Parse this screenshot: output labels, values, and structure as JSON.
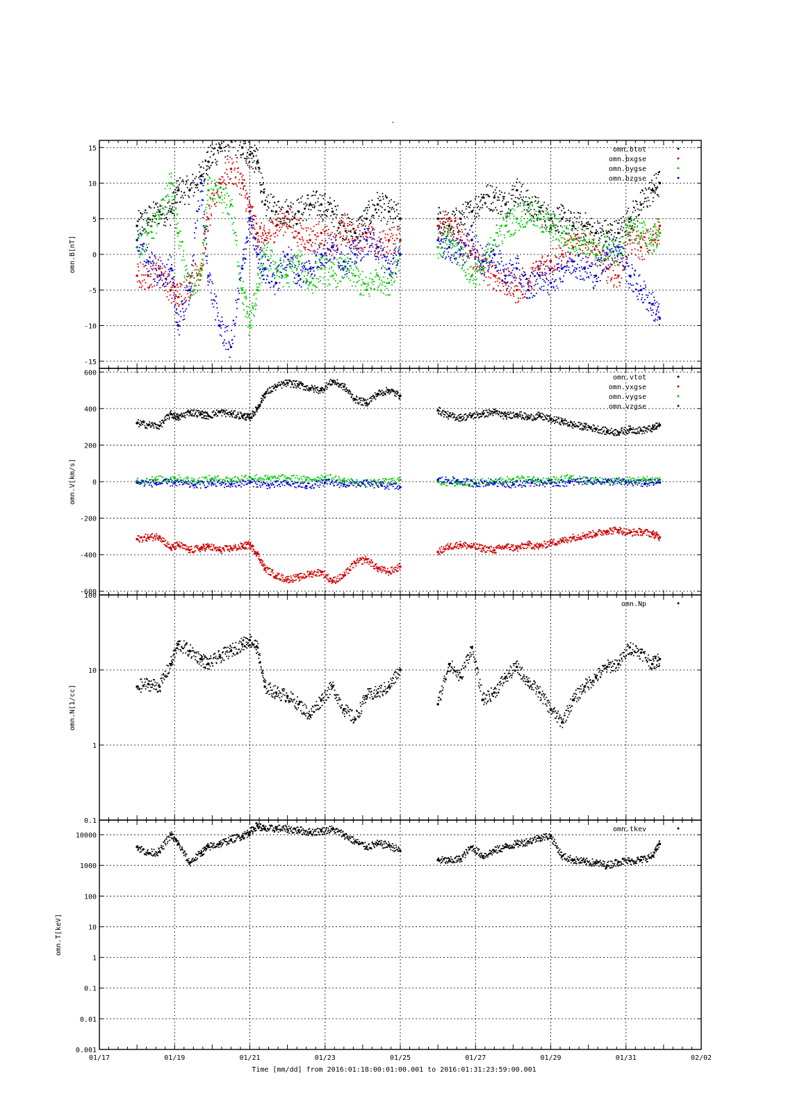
{
  "page": {
    "title": "-",
    "xlabel": "Time [mm/dd]  from 2016:01:18:00:01:00.001  to  2016:01:31:23:59:00.001"
  },
  "x_axis": {
    "range_days": [
      17,
      33
    ],
    "tick_labels": [
      "01/17",
      "01/19",
      "01/21",
      "01/23",
      "01/25",
      "01/27",
      "01/29",
      "01/31",
      "02/02"
    ],
    "tick_values": [
      17,
      19,
      21,
      23,
      25,
      27,
      29,
      31,
      33
    ]
  },
  "colors": {
    "black": "#000000",
    "red": "#d00000",
    "green": "#00c800",
    "blue": "#0000d0"
  },
  "chart_data": [
    {
      "type": "scatter",
      "ylabel": "omn.B[nT]",
      "ylim": [
        -16,
        16
      ],
      "yscale": "linear",
      "grid": true,
      "legend_position": "top-right",
      "y_ticks": [
        -15,
        -10,
        -5,
        0,
        5,
        10,
        15
      ],
      "series": [
        {
          "name": "omn.btot",
          "color": "#000000",
          "x": [
            18.0,
            18.3,
            18.6,
            18.9,
            19.1,
            19.4,
            19.7,
            19.9,
            20.2,
            20.5,
            20.8,
            21.0,
            21.2,
            21.4,
            21.7,
            22.0,
            22.3,
            22.6,
            22.9,
            23.2,
            23.5,
            23.8,
            24.1,
            24.4,
            24.7,
            25.0,
            26.0,
            26.3,
            26.6,
            26.9,
            27.2,
            27.5,
            27.8,
            28.1,
            28.4,
            28.7,
            29.0,
            29.3,
            29.6,
            29.9,
            30.2,
            30.5,
            30.8,
            31.1,
            31.4,
            31.7,
            31.9
          ],
          "y": [
            4,
            5,
            6,
            6,
            9,
            9,
            11,
            13,
            15,
            16,
            15,
            14,
            13,
            7,
            6,
            6,
            6,
            7,
            7,
            6,
            4,
            3,
            5,
            7,
            6,
            5,
            5,
            4,
            5,
            6,
            8,
            8,
            7,
            9,
            7,
            6,
            5,
            5,
            4,
            4,
            3,
            3,
            3,
            5,
            7,
            9,
            10
          ]
        },
        {
          "name": "omn.bxgse",
          "color": "#d00000",
          "x": [
            18.0,
            18.3,
            18.6,
            18.9,
            19.1,
            19.4,
            19.7,
            19.9,
            20.2,
            20.5,
            20.8,
            21.0,
            21.2,
            21.4,
            21.7,
            22.0,
            22.3,
            22.6,
            22.9,
            23.2,
            23.5,
            23.8,
            24.1,
            24.4,
            24.7,
            25.0,
            26.0,
            26.3,
            26.6,
            26.9,
            27.2,
            27.5,
            27.8,
            28.1,
            28.4,
            28.7,
            29.0,
            29.3,
            29.6,
            29.9,
            30.2,
            30.5,
            30.8,
            31.1,
            31.4,
            31.7,
            31.9
          ],
          "y": [
            -3,
            -3,
            -2,
            -5,
            -6,
            -4,
            -2,
            5,
            10,
            12,
            10,
            6,
            3,
            2,
            4,
            5,
            3,
            2,
            3,
            1,
            4,
            2,
            3,
            1,
            2,
            2,
            4,
            5,
            2,
            0,
            -2,
            -3,
            -4,
            -5,
            -4,
            -2,
            -1,
            0,
            1,
            2,
            0,
            -2,
            -3,
            2,
            1,
            2,
            4
          ]
        },
        {
          "name": "omn.bygse",
          "color": "#00c800",
          "x": [
            18.0,
            18.3,
            18.6,
            18.9,
            19.1,
            19.4,
            19.7,
            19.9,
            20.2,
            20.5,
            20.8,
            21.0,
            21.2,
            21.4,
            21.7,
            22.0,
            22.3,
            22.6,
            22.9,
            23.2,
            23.5,
            23.8,
            24.1,
            24.4,
            24.7,
            25.0,
            26.0,
            26.3,
            26.6,
            26.9,
            27.2,
            27.5,
            27.8,
            28.1,
            28.4,
            28.7,
            29.0,
            29.3,
            29.6,
            29.9,
            30.2,
            30.5,
            30.8,
            31.1,
            31.4,
            31.7,
            31.9
          ],
          "y": [
            1,
            3,
            5,
            10,
            3,
            -5,
            -3,
            9,
            8,
            7,
            -5,
            -10,
            -5,
            0,
            -2,
            -3,
            -1,
            -4,
            -2,
            -3,
            -2,
            -3,
            -5,
            -3,
            -4,
            0,
            1,
            2,
            0,
            -3,
            -2,
            2,
            4,
            5,
            6,
            5,
            4,
            3,
            2,
            2,
            0,
            1,
            0,
            4,
            3,
            2,
            3
          ]
        },
        {
          "name": "omn.bzgse",
          "color": "#0000d0",
          "x": [
            18.0,
            18.3,
            18.6,
            18.9,
            19.1,
            19.4,
            19.7,
            19.9,
            20.2,
            20.5,
            20.8,
            21.0,
            21.2,
            21.4,
            21.7,
            22.0,
            22.3,
            22.6,
            22.9,
            23.2,
            23.5,
            23.8,
            24.1,
            24.4,
            24.7,
            25.0,
            26.0,
            26.3,
            26.6,
            26.9,
            27.2,
            27.5,
            27.8,
            28.1,
            28.4,
            28.7,
            29.0,
            29.3,
            29.6,
            29.9,
            30.2,
            30.5,
            30.8,
            31.1,
            31.4,
            31.7,
            31.9
          ],
          "y": [
            2,
            -1,
            -3,
            -2,
            -10,
            -5,
            10,
            -3,
            -10,
            -13,
            -2,
            5,
            0,
            -2,
            -4,
            0,
            -3,
            -2,
            0,
            1,
            -1,
            0,
            2,
            1,
            -2,
            0,
            2,
            1,
            0,
            2,
            -1,
            0,
            -3,
            -2,
            -5,
            -3,
            -4,
            -2,
            -1,
            -2,
            -3,
            0,
            1,
            -3,
            -5,
            -7,
            -9
          ]
        }
      ]
    },
    {
      "type": "scatter",
      "ylabel": "omn.V[km/s]",
      "ylim": [
        -620,
        620
      ],
      "yscale": "linear",
      "grid": true,
      "legend_position": "top-right",
      "y_ticks": [
        -600,
        -400,
        -200,
        0,
        200,
        400,
        600
      ],
      "series": [
        {
          "name": "omn.vtot",
          "color": "#000000",
          "x": [
            18.0,
            18.3,
            18.6,
            18.9,
            19.1,
            19.4,
            19.7,
            19.9,
            20.2,
            20.5,
            20.8,
            21.0,
            21.2,
            21.4,
            21.7,
            22.0,
            22.3,
            22.6,
            22.9,
            23.2,
            23.5,
            23.8,
            24.1,
            24.4,
            24.7,
            25.0,
            26.0,
            26.3,
            26.6,
            26.9,
            27.2,
            27.5,
            27.8,
            28.1,
            28.4,
            28.7,
            29.0,
            29.3,
            29.6,
            29.9,
            30.2,
            30.5,
            30.8,
            31.1,
            31.4,
            31.7,
            31.9
          ],
          "y": [
            320,
            310,
            305,
            370,
            350,
            380,
            370,
            360,
            380,
            370,
            360,
            350,
            400,
            480,
            520,
            540,
            530,
            510,
            500,
            550,
            520,
            450,
            430,
            480,
            500,
            470,
            390,
            360,
            350,
            360,
            370,
            380,
            360,
            370,
            350,
            360,
            340,
            330,
            310,
            300,
            290,
            275,
            270,
            285,
            280,
            290,
            310
          ]
        },
        {
          "name": "omn.vxgse",
          "color": "#d00000",
          "x": [
            18.0,
            18.3,
            18.6,
            18.9,
            19.1,
            19.4,
            19.7,
            19.9,
            20.2,
            20.5,
            20.8,
            21.0,
            21.2,
            21.4,
            21.7,
            22.0,
            22.3,
            22.6,
            22.9,
            23.2,
            23.5,
            23.8,
            24.1,
            24.4,
            24.7,
            25.0,
            26.0,
            26.3,
            26.6,
            26.9,
            27.2,
            27.5,
            27.8,
            28.1,
            28.4,
            28.7,
            29.0,
            29.3,
            29.6,
            29.9,
            30.2,
            30.5,
            30.8,
            31.1,
            31.4,
            31.7,
            31.9
          ],
          "y": [
            -315,
            -305,
            -300,
            -365,
            -345,
            -375,
            -365,
            -355,
            -375,
            -365,
            -355,
            -345,
            -395,
            -475,
            -515,
            -535,
            -525,
            -505,
            -495,
            -545,
            -515,
            -445,
            -425,
            -475,
            -495,
            -465,
            -385,
            -355,
            -345,
            -355,
            -365,
            -375,
            -355,
            -365,
            -345,
            -355,
            -335,
            -325,
            -305,
            -295,
            -285,
            -270,
            -265,
            -280,
            -275,
            -285,
            -305
          ]
        },
        {
          "name": "omn.vygse",
          "color": "#00c800",
          "x": [
            18.0,
            18.5,
            19.0,
            19.5,
            20.0,
            20.5,
            21.0,
            21.5,
            22.0,
            22.5,
            23.0,
            23.5,
            24.0,
            24.5,
            25.0,
            26.0,
            26.5,
            27.0,
            27.5,
            28.0,
            28.5,
            29.0,
            29.5,
            30.0,
            30.5,
            31.0,
            31.5,
            31.9
          ],
          "y": [
            5,
            10,
            20,
            5,
            15,
            10,
            25,
            15,
            20,
            10,
            25,
            5,
            -10,
            -5,
            10,
            0,
            -10,
            -5,
            0,
            15,
            10,
            5,
            20,
            5,
            5,
            5,
            10,
            10
          ]
        },
        {
          "name": "omn.vzgse",
          "color": "#0000d0",
          "x": [
            18.0,
            18.5,
            19.0,
            19.5,
            20.0,
            20.5,
            21.0,
            21.5,
            22.0,
            22.5,
            23.0,
            23.5,
            24.0,
            24.5,
            25.0,
            26.0,
            26.5,
            27.0,
            27.5,
            28.0,
            28.5,
            29.0,
            29.5,
            30.0,
            30.5,
            31.0,
            31.5,
            31.9
          ],
          "y": [
            -5,
            -10,
            -5,
            -20,
            -10,
            -15,
            -5,
            -20,
            -10,
            -25,
            -5,
            -15,
            -10,
            -20,
            -30,
            10,
            5,
            -10,
            -5,
            -15,
            -5,
            -10,
            -5,
            5,
            0,
            -5,
            -10,
            -5
          ]
        }
      ]
    },
    {
      "type": "scatter",
      "ylabel": "omn.N[1/cc]",
      "ylim": [
        0.1,
        100
      ],
      "yscale": "log",
      "grid": true,
      "legend_position": "top-right",
      "y_ticks": [
        0.1,
        1,
        10,
        100
      ],
      "y_tick_labels": [
        "0.1",
        "1",
        "10",
        "100"
      ],
      "series": [
        {
          "name": "omn.Np",
          "color": "#000000",
          "x": [
            18.0,
            18.3,
            18.6,
            18.9,
            19.1,
            19.4,
            19.7,
            19.9,
            20.2,
            20.5,
            20.8,
            21.0,
            21.2,
            21.4,
            21.7,
            22.0,
            22.3,
            22.6,
            22.9,
            23.2,
            23.5,
            23.8,
            24.1,
            24.4,
            24.7,
            25.0,
            26.0,
            26.3,
            26.6,
            26.9,
            27.2,
            27.5,
            27.8,
            28.1,
            28.4,
            28.7,
            29.0,
            29.3,
            29.6,
            29.9,
            30.2,
            30.5,
            30.8,
            31.1,
            31.4,
            31.7,
            31.9
          ],
          "y": [
            6,
            6.5,
            6,
            12,
            22,
            18,
            14,
            12,
            15,
            18,
            22,
            25,
            20,
            6,
            5,
            4.5,
            3.5,
            2.5,
            4,
            6,
            3,
            2.2,
            4.5,
            5,
            6,
            10,
            3.5,
            12,
            8,
            20,
            4,
            5,
            8,
            11,
            7,
            5,
            3,
            2,
            4,
            6,
            8,
            11,
            12,
            20,
            17,
            12,
            14
          ]
        }
      ]
    },
    {
      "type": "scatter",
      "ylabel": "omn.T[keV]",
      "ylim": [
        0.001,
        30000
      ],
      "yscale": "log",
      "grid": true,
      "legend_position": "top-right",
      "y_ticks": [
        0.001,
        0.01,
        0.1,
        1,
        10,
        100,
        1000,
        10000
      ],
      "y_tick_labels": [
        "0.001",
        "0.01",
        "0.1",
        "1",
        "10",
        "100",
        "1000",
        "10000"
      ],
      "series": [
        {
          "name": "omn.tkev",
          "color": "#000000",
          "x": [
            18.0,
            18.3,
            18.6,
            18.9,
            19.1,
            19.4,
            19.7,
            19.9,
            20.2,
            20.5,
            20.8,
            21.0,
            21.2,
            21.4,
            21.7,
            22.0,
            22.3,
            22.6,
            22.9,
            23.2,
            23.5,
            23.8,
            24.1,
            24.4,
            24.7,
            25.0,
            26.0,
            26.3,
            26.6,
            26.9,
            27.2,
            27.5,
            27.8,
            28.1,
            28.4,
            28.7,
            29.0,
            29.3,
            29.6,
            29.9,
            30.2,
            30.5,
            30.8,
            31.1,
            31.4,
            31.7,
            31.9
          ],
          "y": [
            4000,
            2500,
            2800,
            10000,
            5000,
            1200,
            2500,
            4000,
            5000,
            7000,
            9000,
            12000,
            20000,
            15000,
            16000,
            15000,
            14000,
            12000,
            13000,
            15000,
            10000,
            6000,
            4000,
            5000,
            4500,
            3000,
            1500,
            1400,
            1600,
            4000,
            2000,
            3000,
            4000,
            5000,
            6000,
            8000,
            9000,
            2000,
            1500,
            1300,
            1200,
            1000,
            1300,
            1400,
            1500,
            2000,
            5000
          ]
        }
      ]
    }
  ]
}
